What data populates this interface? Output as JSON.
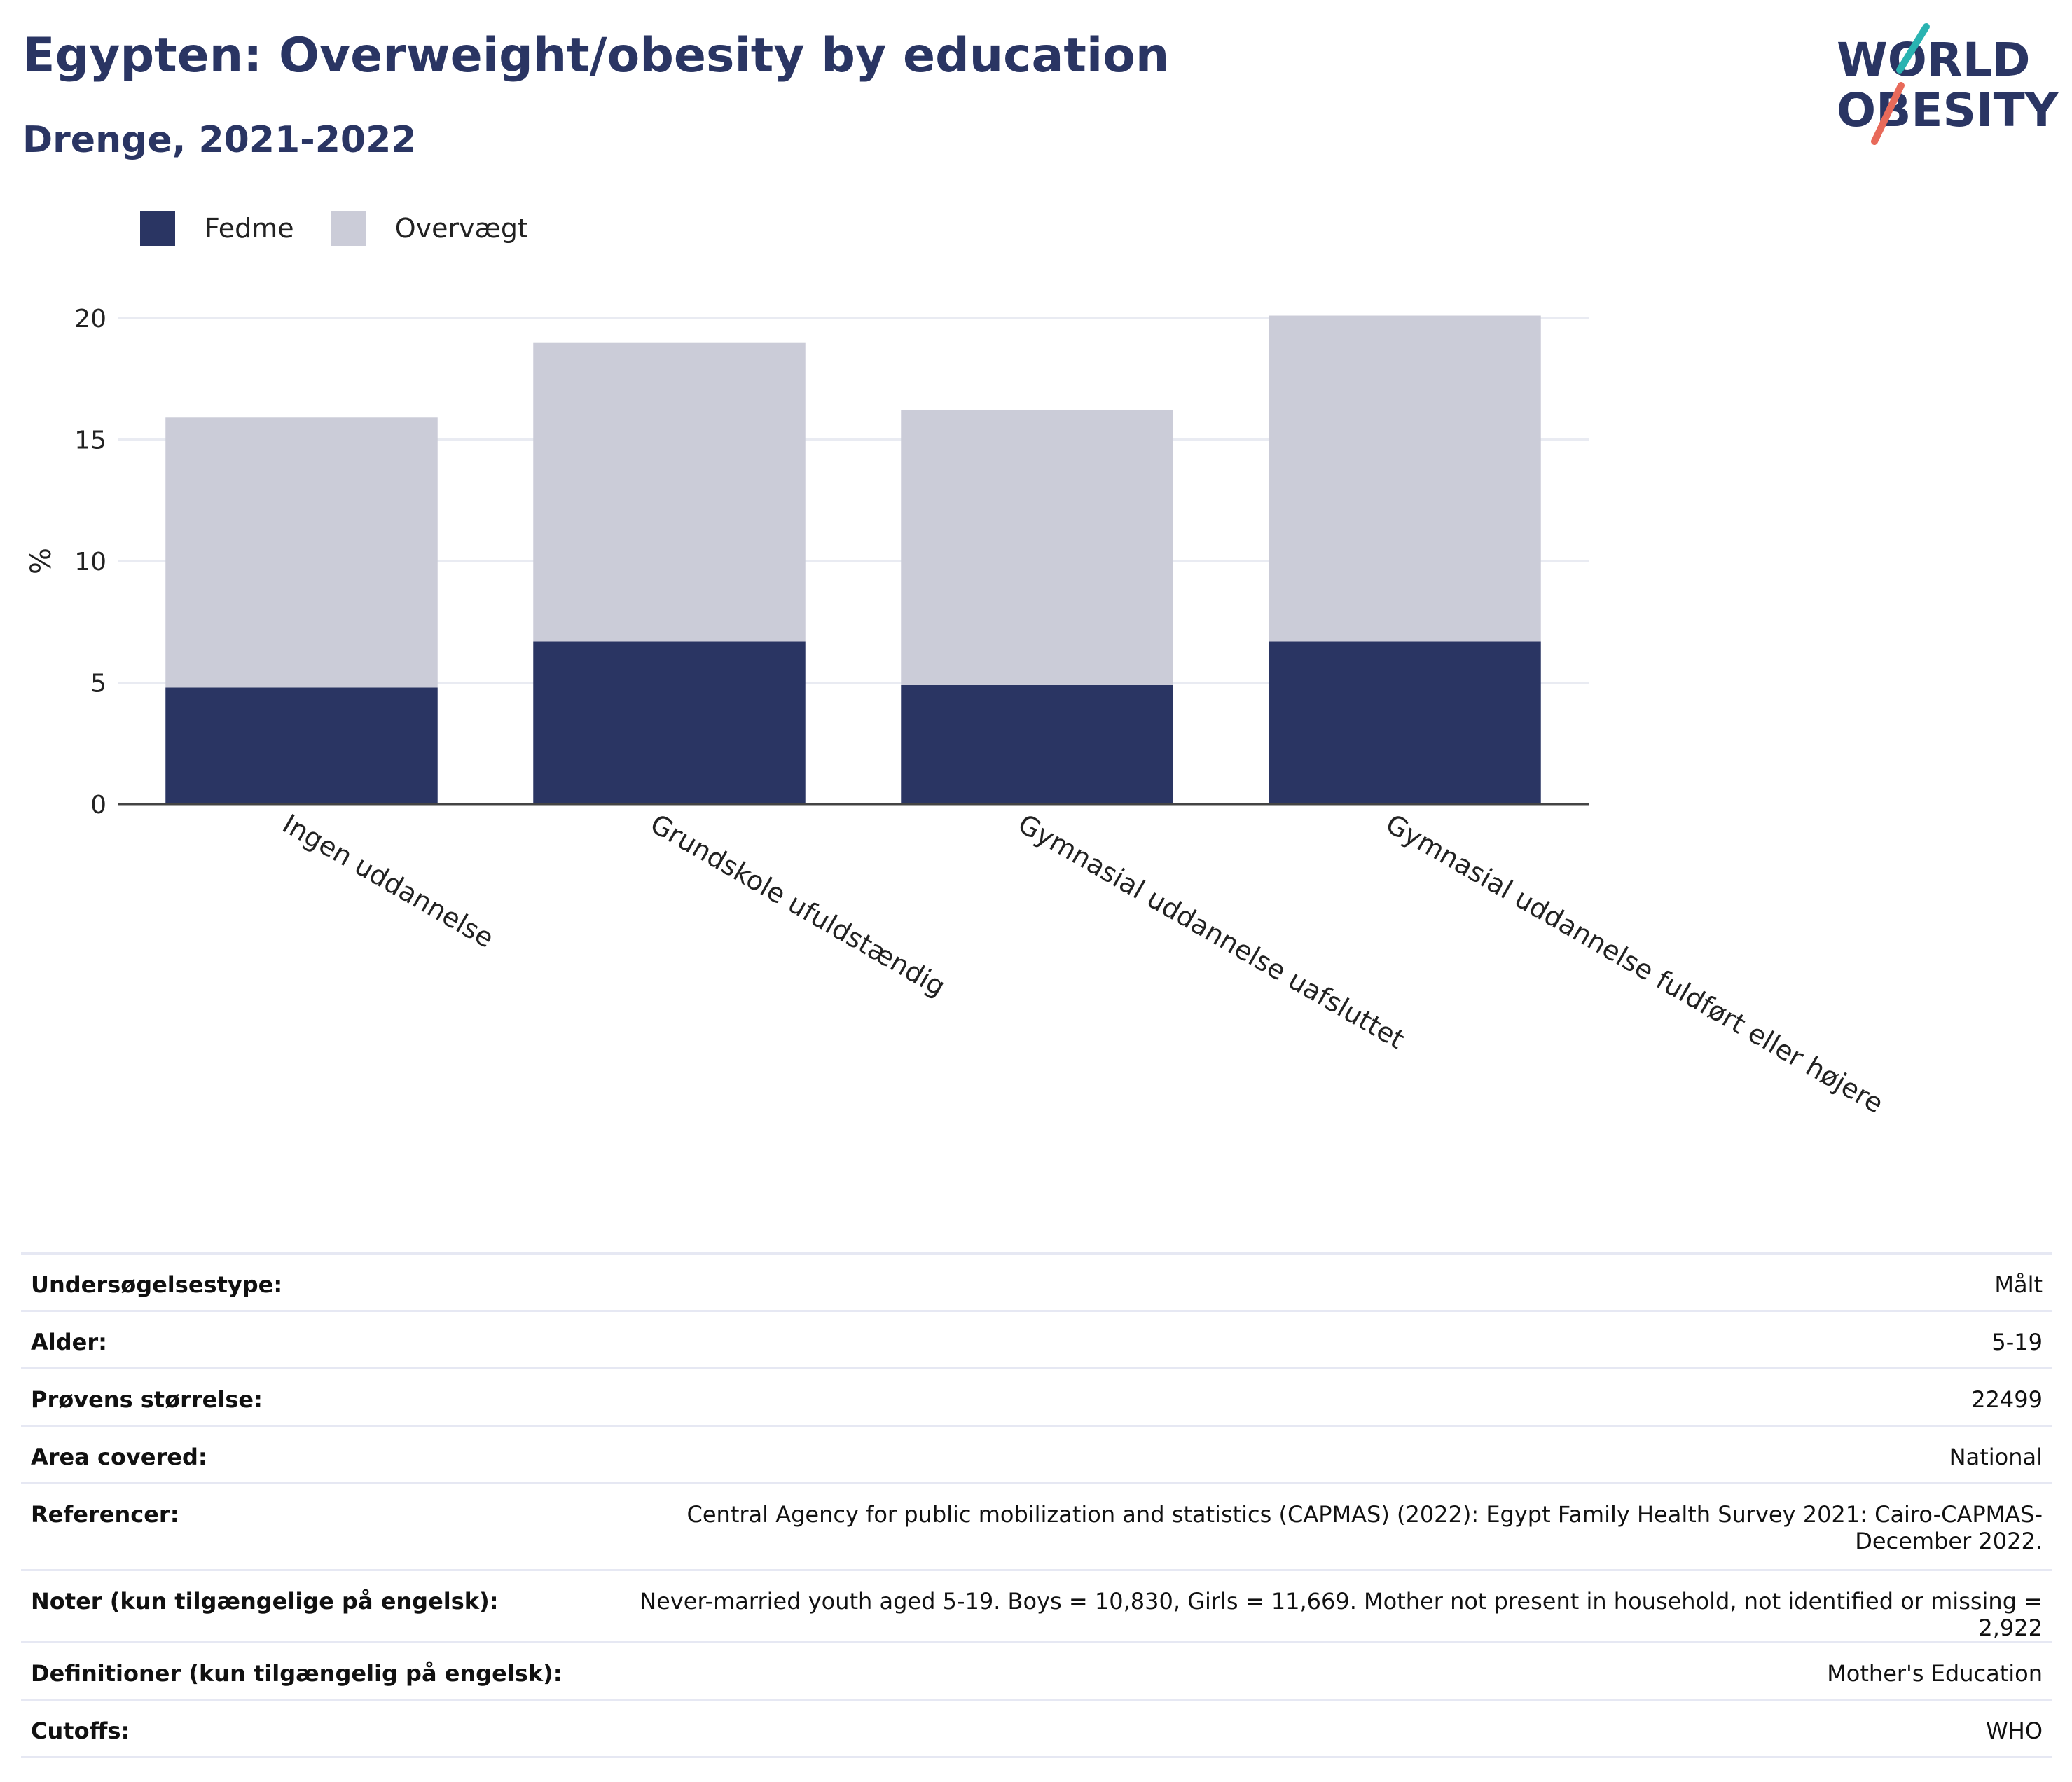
{
  "header": {
    "title": "Egypten: Overweight/obesity by education",
    "subtitle": "Drenge, 2021-2022"
  },
  "logo": {
    "line1": "WORLD",
    "line2": "OBESITY",
    "accent_teal": "#2ab3b1",
    "accent_coral": "#e86a5a"
  },
  "colors": {
    "fedme": "#2a3563",
    "overvaegt": "#cbccd8",
    "axis": "#444444",
    "grid": "#e9ebf2"
  },
  "chart_data": {
    "type": "bar",
    "stacked": true,
    "categories": [
      "Ingen uddannelse",
      "Grundskole ufuldstændig",
      "Gymnasial uddannelse uafsluttet",
      "Gymnasial uddannelse fuldført eller højere"
    ],
    "series": [
      {
        "name": "Fedme",
        "values": [
          4.8,
          6.7,
          4.9,
          6.7
        ]
      },
      {
        "name": "Overvægt",
        "values": [
          11.1,
          12.3,
          11.3,
          13.4
        ]
      }
    ],
    "ylabel": "%",
    "ylim": [
      0,
      20
    ],
    "yticks": [
      "0",
      "5",
      "10",
      "15",
      "20"
    ],
    "legend_position": "top-left",
    "grid": true
  },
  "meta": [
    {
      "key": "Undersøgelsestype:",
      "value": "Målt"
    },
    {
      "key": "Alder:",
      "value": "5-19"
    },
    {
      "key": "Prøvens størrelse:",
      "value": "22499"
    },
    {
      "key": "Area covered:",
      "value": "National"
    },
    {
      "key": "Referencer:",
      "value": "Central Agency for public mobilization and statistics (CAPMAS) (2022): Egypt Family Health Survey 2021: Cairo-CAPMAS-December 2022."
    },
    {
      "key": "Noter (kun tilgængelige på engelsk):",
      "value": "Never-married youth aged 5-19. Boys = 10,830, Girls = 11,669. Mother not present in household, not identified or missing = 2,922"
    },
    {
      "key": "Definitioner (kun tilgængelig på engelsk):",
      "value": "Mother's Education"
    },
    {
      "key": "Cutoffs:",
      "value": "WHO"
    }
  ]
}
